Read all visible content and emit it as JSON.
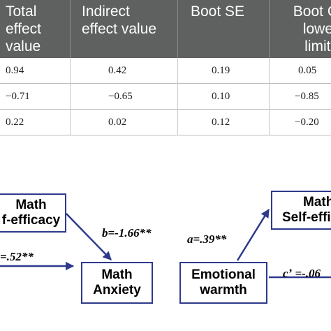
{
  "table": {
    "headers": [
      [
        "Total",
        "effect",
        "value"
      ],
      [
        "Indirect",
        "effect value"
      ],
      [
        "Boot SE"
      ],
      [
        "Boot C",
        "lower",
        "limits"
      ]
    ],
    "rows": [
      [
        "0.94",
        "0.42",
        "0.19",
        "0.05"
      ],
      [
        "−0.71",
        "−0.65",
        "0.10",
        "−0.85"
      ],
      [
        "0.22",
        "0.02",
        "0.12",
        "−0.20"
      ]
    ]
  },
  "diagram": {
    "boxes": {
      "math_self_efficacy_left": [
        "Math",
        "f-efficacy"
      ],
      "math_anxiety": [
        "Math",
        "Anxiety"
      ],
      "emotional_warmth": [
        "Emotional",
        "warmth"
      ],
      "math_self_efficacy_right": [
        "Math",
        "Self-effic"
      ]
    },
    "coefficients": {
      "b": "b=-1.66**",
      "a": "a=.39**",
      "left": "=.52**",
      "c_prime": "cʼ =-.06"
    },
    "colors": {
      "box_border": "#2e3a8c",
      "arrow": "#2e3a8c",
      "header_bg": "#5e6160"
    }
  }
}
